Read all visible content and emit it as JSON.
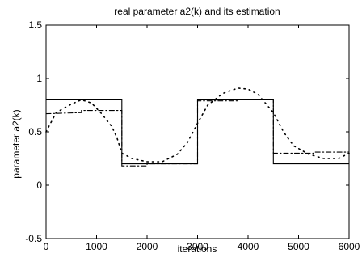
{
  "chart_data": {
    "type": "line",
    "title": "real parameter a2(k) and its estimation",
    "xlabel": "iterations",
    "ylabel": "parameter a2(k)",
    "xlim": [
      0,
      6000
    ],
    "ylim": [
      -0.5,
      1.5
    ],
    "xticks": [
      0,
      1000,
      2000,
      3000,
      4000,
      5000,
      6000
    ],
    "yticks": [
      -0.5,
      0,
      0.5,
      1,
      1.5
    ],
    "xtick_labels": [
      "0",
      "1000",
      "2000",
      "3000",
      "4000",
      "5000",
      "6000"
    ],
    "ytick_labels": [
      "-0.5",
      "0",
      "0.5",
      "1",
      "1.5"
    ],
    "grid": false,
    "series": [
      {
        "style": "solid",
        "points": [
          [
            0,
            0.8
          ],
          [
            1500,
            0.8
          ],
          [
            1500,
            0.2
          ],
          [
            3000,
            0.2
          ],
          [
            3000,
            0.8
          ],
          [
            4500,
            0.8
          ],
          [
            4500,
            0.2
          ],
          [
            6000,
            0.2
          ]
        ]
      },
      {
        "style": "dashdot",
        "points": [
          [
            0,
            0.67
          ],
          [
            700,
            0.68
          ],
          [
            700,
            0.7
          ],
          [
            1500,
            0.7
          ],
          [
            1500,
            0.18
          ],
          [
            2000,
            0.18
          ],
          [
            2000,
            0.2
          ],
          [
            3000,
            0.2
          ],
          [
            3000,
            0.79
          ],
          [
            3800,
            0.79
          ],
          [
            3800,
            0.8
          ],
          [
            4500,
            0.8
          ],
          [
            4500,
            0.3
          ],
          [
            5300,
            0.3
          ],
          [
            5300,
            0.31
          ],
          [
            6000,
            0.31
          ]
        ]
      },
      {
        "style": "dotted",
        "points": [
          [
            0,
            0.5
          ],
          [
            200,
            0.68
          ],
          [
            500,
            0.76
          ],
          [
            700,
            0.8
          ],
          [
            900,
            0.77
          ],
          [
            1100,
            0.67
          ],
          [
            1300,
            0.55
          ],
          [
            1400,
            0.45
          ],
          [
            1500,
            0.3
          ],
          [
            1700,
            0.25
          ],
          [
            2000,
            0.22
          ],
          [
            2300,
            0.22
          ],
          [
            2600,
            0.29
          ],
          [
            2800,
            0.4
          ],
          [
            3000,
            0.58
          ],
          [
            3200,
            0.75
          ],
          [
            3500,
            0.86
          ],
          [
            3800,
            0.91
          ],
          [
            4000,
            0.9
          ],
          [
            4200,
            0.85
          ],
          [
            4500,
            0.68
          ],
          [
            4700,
            0.5
          ],
          [
            4900,
            0.37
          ],
          [
            5200,
            0.29
          ],
          [
            5500,
            0.25
          ],
          [
            5800,
            0.25
          ],
          [
            6000,
            0.3
          ]
        ]
      }
    ]
  }
}
